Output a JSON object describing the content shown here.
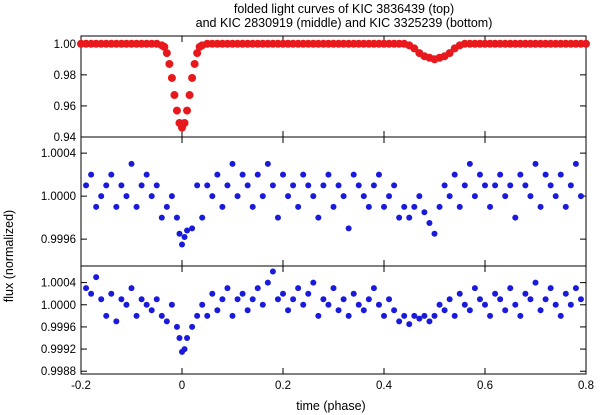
{
  "figure": {
    "title_lines": [
      "folded light curves of KIC 3836439 (top)",
      "and KIC 2830919 (middle) and KIC 3325239 (bottom)"
    ],
    "xlabel": "time (phase)",
    "ylabel": "flux (normalized)"
  },
  "chart_data": [
    {
      "type": "scatter",
      "panel": "top",
      "xlim": [
        -0.2,
        0.8
      ],
      "ylim": [
        0.94,
        1.005
      ],
      "xticks": [
        "-0.2",
        "0",
        "0.2",
        "0.4",
        "0.6",
        "0.8"
      ],
      "yticks": [
        "0.94",
        "0.96",
        "0.98",
        "1.00"
      ],
      "ytick_values": [
        0.94,
        0.96,
        0.98,
        1.0
      ],
      "color": "#e8191c",
      "series": [
        {
          "x": [
            -0.2,
            -0.19,
            -0.18,
            -0.17,
            -0.16,
            -0.15,
            -0.14,
            -0.13,
            -0.12,
            -0.11,
            -0.1,
            -0.09,
            -0.08,
            -0.07,
            -0.06,
            -0.05,
            -0.04,
            -0.035,
            -0.03,
            -0.025,
            -0.02,
            -0.015,
            -0.01,
            -0.005,
            0.0,
            0.005,
            0.01,
            0.015,
            0.02,
            0.025,
            0.03,
            0.035,
            0.04,
            0.05,
            0.06,
            0.07,
            0.08,
            0.09,
            0.1,
            0.11,
            0.12,
            0.13,
            0.14,
            0.15,
            0.16,
            0.17,
            0.18,
            0.19,
            0.2,
            0.21,
            0.22,
            0.23,
            0.24,
            0.25,
            0.26,
            0.27,
            0.28,
            0.29,
            0.3,
            0.31,
            0.32,
            0.33,
            0.34,
            0.35,
            0.36,
            0.37,
            0.38,
            0.39,
            0.4,
            0.41,
            0.42,
            0.43,
            0.44,
            0.45,
            0.46,
            0.47,
            0.48,
            0.49,
            0.5,
            0.51,
            0.52,
            0.53,
            0.54,
            0.55,
            0.56,
            0.57,
            0.58,
            0.59,
            0.6,
            0.61,
            0.62,
            0.63,
            0.64,
            0.65,
            0.66,
            0.67,
            0.68,
            0.69,
            0.7,
            0.71,
            0.72,
            0.73,
            0.74,
            0.75,
            0.76,
            0.77,
            0.78,
            0.79,
            0.8
          ],
          "y": [
            1.0,
            1.0,
            1.0,
            1.0,
            1.0,
            1.0,
            1.0,
            1.0,
            1.0,
            1.0,
            1.0,
            1.0,
            1.0,
            1.0,
            1.0,
            1.0,
            0.999,
            0.998,
            0.994,
            0.987,
            0.978,
            0.967,
            0.957,
            0.949,
            0.946,
            0.949,
            0.957,
            0.967,
            0.978,
            0.987,
            0.994,
            0.998,
            0.999,
            1.0,
            1.0,
            1.0,
            1.0,
            1.0,
            1.0,
            1.0,
            1.0,
            1.0,
            1.0,
            1.0,
            1.0,
            1.0,
            1.0,
            1.0,
            1.0,
            1.0,
            1.0,
            1.0,
            1.0,
            1.0,
            1.0,
            1.0,
            1.0,
            1.0,
            1.0,
            1.0,
            1.0,
            1.0,
            1.0,
            1.0,
            1.0,
            1.0,
            1.0,
            1.0,
            1.0,
            1.0,
            1.0,
            1.0,
            1.0,
            0.999,
            0.997,
            0.994,
            0.992,
            0.991,
            0.99,
            0.991,
            0.992,
            0.994,
            0.997,
            0.999,
            1.0,
            1.0,
            1.0,
            1.0,
            1.0,
            1.0,
            1.0,
            1.0,
            1.0,
            1.0,
            1.0,
            1.0,
            1.0,
            1.0,
            1.0,
            1.0,
            1.0,
            1.0,
            1.0,
            1.0,
            1.0,
            1.0,
            1.0,
            1.0,
            1.0
          ]
        }
      ]
    },
    {
      "type": "scatter",
      "panel": "middle",
      "xlim": [
        -0.2,
        0.8
      ],
      "ylim": [
        0.99935,
        1.00055
      ],
      "yticks": [
        "0.9996",
        "1.0000",
        "1.0004"
      ],
      "ytick_values": [
        0.9996,
        1.0,
        1.0004
      ],
      "color": "#1a1adc",
      "series": [
        {
          "x": [
            -0.19,
            -0.18,
            -0.17,
            -0.16,
            -0.15,
            -0.14,
            -0.13,
            -0.12,
            -0.11,
            -0.1,
            -0.09,
            -0.08,
            -0.07,
            -0.06,
            -0.05,
            -0.04,
            -0.03,
            -0.02,
            -0.01,
            -0.005,
            0.0,
            0.005,
            0.01,
            0.02,
            0.03,
            0.04,
            0.05,
            0.06,
            0.07,
            0.08,
            0.09,
            0.1,
            0.11,
            0.12,
            0.13,
            0.14,
            0.15,
            0.16,
            0.17,
            0.18,
            0.19,
            0.2,
            0.21,
            0.22,
            0.23,
            0.24,
            0.25,
            0.26,
            0.27,
            0.28,
            0.29,
            0.3,
            0.31,
            0.32,
            0.33,
            0.34,
            0.35,
            0.36,
            0.37,
            0.38,
            0.39,
            0.4,
            0.41,
            0.42,
            0.43,
            0.44,
            0.45,
            0.46,
            0.47,
            0.48,
            0.49,
            0.5,
            0.51,
            0.52,
            0.53,
            0.54,
            0.55,
            0.56,
            0.57,
            0.58,
            0.59,
            0.6,
            0.61,
            0.62,
            0.63,
            0.64,
            0.65,
            0.66,
            0.67,
            0.68,
            0.69,
            0.7,
            0.71,
            0.72,
            0.73,
            0.74,
            0.75,
            0.76,
            0.77,
            0.78,
            0.79
          ],
          "y": [
            1.0001,
            1.0002,
            0.9999,
            1.0,
            1.0001,
            1.0002,
            0.9999,
            1.0001,
            1.0,
            1.0003,
            0.9999,
            1.0001,
            1.0002,
            1.0,
            1.0001,
            0.9998,
            0.9999,
            1.0,
            0.9998,
            0.99965,
            0.99955,
            0.99962,
            0.99968,
            0.9997,
            1.0001,
            0.9998,
            1.0001,
            1.0,
            1.0002,
            0.9999,
            1.0001,
            1.0003,
            1.0,
            1.0002,
            1.0001,
            0.9999,
            1.0002,
            1.0,
            1.0003,
            1.0001,
            0.9998,
            1.0002,
            1.0,
            1.0001,
            0.9999,
            1.0002,
            1.0001,
            1.0,
            0.9998,
            1.0001,
            1.0002,
            0.9999,
            1.0001,
            1.0,
            0.9997,
            1.0002,
            1.0001,
            1.0,
            0.9999,
            1.0001,
            1.0002,
            0.9999,
            1.0,
            1.0001,
            0.9998,
            0.9999,
            0.9998,
            0.9999,
            1.0,
            0.99985,
            0.99975,
            0.99965,
            0.9999,
            1.0001,
            1.0,
            1.0002,
            0.9999,
            1.0001,
            1.0003,
            1.0,
            1.0002,
            1.0001,
            0.9999,
            1.0001,
            1.0002,
            1.0,
            1.0001,
            0.9998,
            1.0002,
            1.0001,
            1.0,
            1.0003,
            0.9999,
            1.0002,
            1.0001,
            1.0,
            1.0002,
            0.9999,
            1.0001,
            1.0003,
            1.0
          ]
        }
      ]
    },
    {
      "type": "scatter",
      "panel": "bottom",
      "xlim": [
        -0.2,
        0.8
      ],
      "ylim": [
        0.99875,
        1.0007
      ],
      "yticks": [
        "0.9988",
        "0.9992",
        "0.9996",
        "1.0000",
        "1.0004"
      ],
      "ytick_values": [
        0.9988,
        0.9992,
        0.9996,
        1.0,
        1.0004
      ],
      "color": "#1a1adc",
      "series": [
        {
          "x": [
            -0.19,
            -0.18,
            -0.17,
            -0.16,
            -0.15,
            -0.14,
            -0.13,
            -0.12,
            -0.11,
            -0.1,
            -0.09,
            -0.08,
            -0.07,
            -0.06,
            -0.05,
            -0.04,
            -0.03,
            -0.02,
            -0.01,
            -0.005,
            0.0,
            0.005,
            0.01,
            0.02,
            0.03,
            0.04,
            0.05,
            0.06,
            0.07,
            0.08,
            0.09,
            0.1,
            0.11,
            0.12,
            0.13,
            0.14,
            0.15,
            0.16,
            0.17,
            0.18,
            0.19,
            0.2,
            0.21,
            0.22,
            0.23,
            0.24,
            0.25,
            0.26,
            0.27,
            0.28,
            0.29,
            0.3,
            0.31,
            0.32,
            0.33,
            0.34,
            0.35,
            0.36,
            0.37,
            0.38,
            0.39,
            0.4,
            0.41,
            0.42,
            0.43,
            0.44,
            0.45,
            0.46,
            0.47,
            0.48,
            0.49,
            0.5,
            0.51,
            0.52,
            0.53,
            0.54,
            0.55,
            0.56,
            0.57,
            0.58,
            0.59,
            0.6,
            0.61,
            0.62,
            0.63,
            0.64,
            0.65,
            0.66,
            0.67,
            0.68,
            0.69,
            0.7,
            0.71,
            0.72,
            0.73,
            0.74,
            0.75,
            0.76,
            0.77,
            0.78,
            0.79
          ],
          "y": [
            1.0003,
            1.0002,
            1.0005,
            1.0001,
            0.9998,
            1.0002,
            0.9997,
            1.0001,
            1.0,
            1.0003,
            0.9998,
            1.0001,
            1.0,
            0.9999,
            1.0001,
            0.9998,
            0.9997,
            1.0,
            0.9996,
            0.9994,
            0.99915,
            0.9992,
            0.9994,
            0.9996,
            0.9998,
            1.0,
            0.9998,
            1.0002,
            0.9999,
            1.0001,
            1.0003,
            0.9998,
            1.0001,
            1.0002,
            0.9999,
            1.0001,
            1.0003,
            1.0,
            1.0004,
            1.0006,
            1.0001,
            1.0002,
            0.9999,
            1.0001,
            1.0003,
            1.0,
            1.0002,
            1.0004,
            0.9998,
            1.0001,
            1.0,
            1.0003,
            0.9999,
            1.0001,
            0.9998,
            1.0002,
            1.0,
            0.9999,
            1.0001,
            1.0003,
            1.0,
            0.9998,
            1.0001,
            0.9999,
            0.9997,
            0.9998,
            0.99965,
            0.9998,
            0.99975,
            0.9998,
            0.9997,
            0.9998,
            1.0,
            0.9999,
            1.0001,
            0.9998,
            1.0002,
            1.0,
            0.9999,
            1.0003,
            1.0001,
            1.0,
            0.9998,
            1.0002,
            1.0001,
            0.9999,
            1.0003,
            1.0,
            0.9998,
            1.0002,
            1.0001,
            1.0004,
            0.9999,
            1.0001,
            1.0003,
            1.0,
            0.9998,
            1.0002,
            1.0,
            1.0003,
            1.0001
          ]
        }
      ]
    }
  ]
}
